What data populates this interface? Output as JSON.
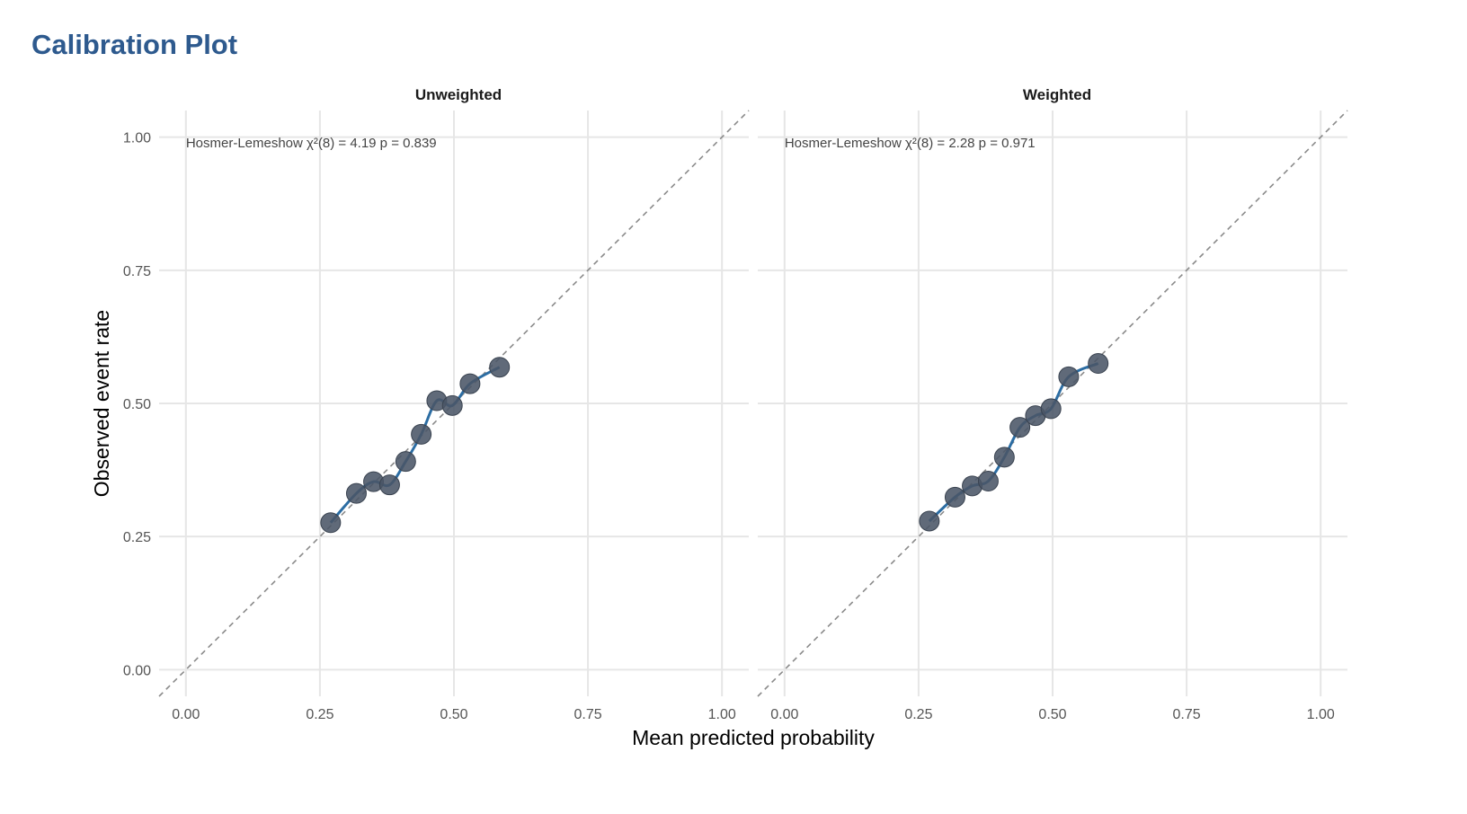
{
  "title": "Calibration Plot",
  "chart_data": {
    "type": "scatter",
    "xlabel": "Mean predicted probability",
    "ylabel": "Observed event rate",
    "xlim": [
      -0.05,
      1.05
    ],
    "ylim": [
      -0.05,
      1.05
    ],
    "ticks": [
      "0.00",
      "0.25",
      "0.50",
      "0.75",
      "1.00"
    ],
    "grid": true,
    "reference_line": "identity (dashed)",
    "colors": {
      "points": "#4a5566",
      "smooth": "#2c6da3",
      "reference": "#8a8a8a",
      "grid": "#e6e6e6"
    },
    "panels": [
      {
        "name": "Unweighted",
        "annotation": "Hosmer-Lemeshow χ²(8) = 4.19  p = 0.839",
        "x": [
          0.27,
          0.318,
          0.35,
          0.38,
          0.41,
          0.439,
          0.468,
          0.497,
          0.53,
          0.585
        ],
        "y": [
          0.276,
          0.331,
          0.353,
          0.347,
          0.391,
          0.442,
          0.505,
          0.496,
          0.537,
          0.568
        ]
      },
      {
        "name": "Weighted",
        "annotation": "Hosmer-Lemeshow χ²(8) = 2.28  p = 0.971",
        "x": [
          0.27,
          0.318,
          0.35,
          0.38,
          0.41,
          0.439,
          0.468,
          0.497,
          0.53,
          0.585
        ],
        "y": [
          0.279,
          0.324,
          0.345,
          0.354,
          0.399,
          0.455,
          0.477,
          0.49,
          0.55,
          0.575
        ]
      }
    ]
  }
}
